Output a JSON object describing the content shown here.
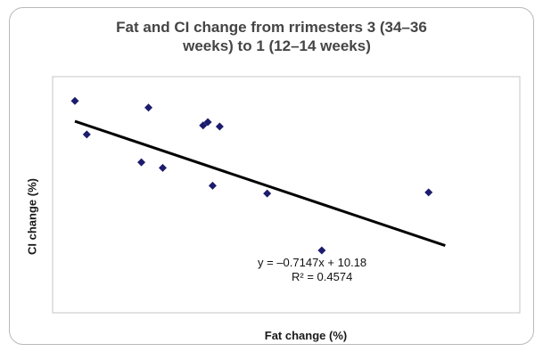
{
  "chart_data": {
    "type": "scatter",
    "title_lines": [
      "Fat and CI change from rrimesters 3 (34–36",
      "weeks) to 1 (12–14 weeks)"
    ],
    "xlabel": "Fat change (%)",
    "ylabel": "CI change (%)",
    "grid": false,
    "legend": "none",
    "marker_color": "#1c1c6e",
    "trendline": {
      "equation": "y = –0.7147x + 10.18",
      "r_squared": "R² = 0.4574",
      "slope": -0.7147,
      "intercept": 10.18,
      "color": "#000000"
    },
    "xlim": [
      0,
      16
    ],
    "ylim": [
      -6.6,
      14.5
    ],
    "points": [
      {
        "x": 0.0,
        "y": 12.0
      },
      {
        "x": 0.5,
        "y": 9.0
      },
      {
        "x": 2.8,
        "y": 6.5
      },
      {
        "x": 3.1,
        "y": 11.4
      },
      {
        "x": 3.7,
        "y": 6.0
      },
      {
        "x": 5.4,
        "y": 9.8
      },
      {
        "x": 5.6,
        "y": 10.1
      },
      {
        "x": 5.8,
        "y": 4.4
      },
      {
        "x": 6.1,
        "y": 9.7
      },
      {
        "x": 8.1,
        "y": 3.7
      },
      {
        "x": 10.4,
        "y": -1.4
      },
      {
        "x": 14.9,
        "y": 3.8
      }
    ]
  }
}
